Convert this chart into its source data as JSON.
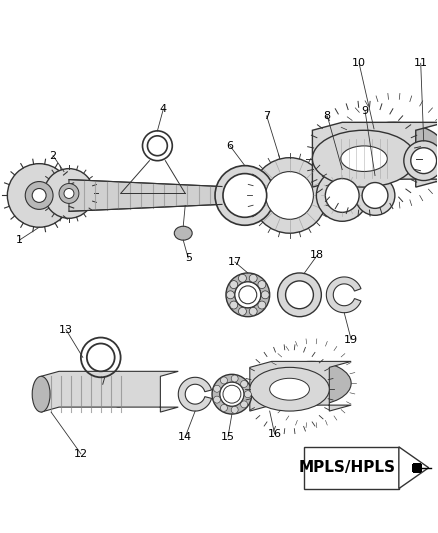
{
  "background_color": "#ffffff",
  "line_color": "#333333",
  "fill_light": "#d8d8d8",
  "fill_mid": "#b8b8b8",
  "fill_dark": "#888888",
  "mpls_text": "MPLS/HPLS"
}
